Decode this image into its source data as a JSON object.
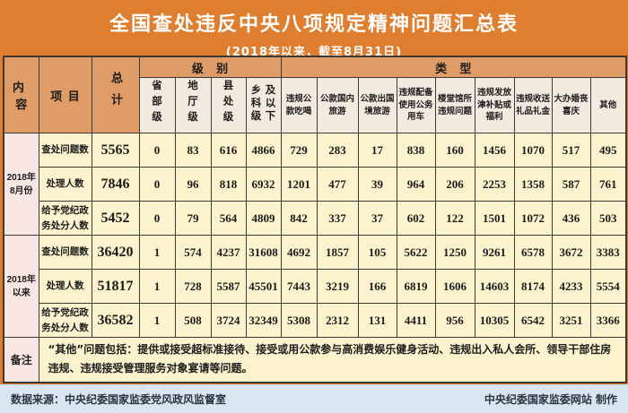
{
  "title": "全国查处违反中央八项规定精神问题汇总表",
  "subtitle": "(2018年以来，截至8月31日)",
  "table": {
    "corner_headers": {
      "content": "内容",
      "item": "项目",
      "total": "总计"
    },
    "group_headers": {
      "level": "级别",
      "type": "类型"
    },
    "level_headers": [
      "省部级",
      "地厅级",
      "县处级",
      "乡科级及以下"
    ],
    "type_headers": [
      "违规公款吃喝",
      "公款国内旅游",
      "公款出国境旅游",
      "违规配备使用公务用车",
      "楼堂馆所违规问题",
      "违规发放津补贴或福利",
      "违规收送礼品礼金",
      "大办婚丧喜庆",
      "其他"
    ],
    "sections": [
      {
        "period": "2018年\n8月份",
        "rows": [
          {
            "label": "查处问题数",
            "total": "5565",
            "values": [
              "0",
              "83",
              "616",
              "4866",
              "729",
              "283",
              "17",
              "838",
              "160",
              "1456",
              "1070",
              "517",
              "495"
            ]
          },
          {
            "label": "处理人数",
            "total": "7846",
            "values": [
              "0",
              "96",
              "818",
              "6932",
              "1201",
              "477",
              "39",
              "964",
              "206",
              "2253",
              "1358",
              "587",
              "761"
            ]
          },
          {
            "label": "给予党纪政务处分人数",
            "total": "5452",
            "values": [
              "0",
              "79",
              "564",
              "4809",
              "842",
              "337",
              "37",
              "602",
              "122",
              "1501",
              "1072",
              "436",
              "503"
            ]
          }
        ]
      },
      {
        "period": "2018年\n以来",
        "rows": [
          {
            "label": "查处问题数",
            "total": "36420",
            "values": [
              "1",
              "574",
              "4237",
              "31608",
              "4692",
              "1857",
              "105",
              "5622",
              "1250",
              "9261",
              "6578",
              "3672",
              "3383"
            ]
          },
          {
            "label": "处理人数",
            "total": "51817",
            "values": [
              "1",
              "728",
              "5587",
              "45501",
              "7443",
              "3219",
              "166",
              "6819",
              "1606",
              "14603",
              "8174",
              "4233",
              "5554"
            ]
          },
          {
            "label": "给予党纪政务处分人数",
            "total": "36582",
            "values": [
              "1",
              "508",
              "3724",
              "32349",
              "5308",
              "2312",
              "131",
              "4411",
              "956",
              "10305",
              "6542",
              "3251",
              "3366"
            ]
          }
        ]
      }
    ],
    "remark_label": "备注",
    "remark_text": "“其他”问题包括：提供或接受超标准接待、接受或用公款参与高消费娱乐健身活动、违规出入私人会所、领导干部住房违规、违规接受管理服务对象宴请等问题。"
  },
  "footer": {
    "source": "数据来源：中央纪委国家监委党风政风监督室",
    "credit": "中央纪委国家监委网站 制作"
  },
  "colors": {
    "page_bg": "#df7e2f",
    "header_bg": "#df9c66",
    "subheader_bg": "#f2e9df",
    "cell_bg": "#fbf3cd",
    "side_bg": "#f8e6e2",
    "footer_bg": "#d9e6f2",
    "border": "#3d3a35",
    "title_text": "#ffffff",
    "text": "#1c1c1c",
    "footer_text": "#2c3340"
  }
}
